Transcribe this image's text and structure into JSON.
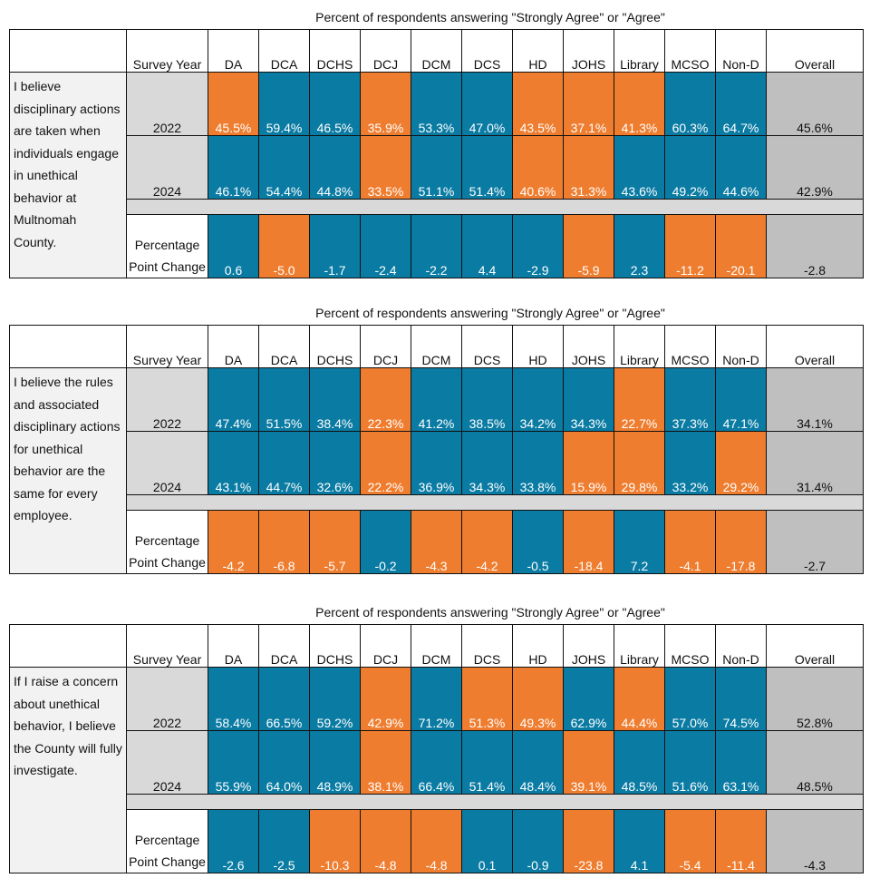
{
  "caption": "Percent of respondents answering \"Strongly Agree\" or \"Agree\"",
  "header": {
    "survey_year": "Survey Year",
    "columns": [
      "DA",
      "DCA",
      "DCHS",
      "DCJ",
      "DCM",
      "DCS",
      "HD",
      "JOHS",
      "Library",
      "MCSO",
      "Non-D"
    ],
    "overall": "Overall"
  },
  "change_label": "Percentage Point Change",
  "colors": {
    "blue": "#0a7ba3",
    "orange": "#ef7d2f",
    "gray": "#bfbfbf",
    "light_gray": "#d9d9d9"
  },
  "chart_data": [
    {
      "type": "table",
      "title": "Percent of respondents answering \"Strongly Agree\" or \"Agree\"",
      "question": "I believe disciplinary actions are taken when individuals engage in unethical behavior at Multnomah County.",
      "categories": [
        "DA",
        "DCA",
        "DCHS",
        "DCJ",
        "DCM",
        "DCS",
        "HD",
        "JOHS",
        "Library",
        "MCSO",
        "Non-D"
      ],
      "rows": [
        {
          "year": "2022",
          "values": [
            "45.5%",
            "59.4%",
            "46.5%",
            "35.9%",
            "53.3%",
            "47.0%",
            "43.5%",
            "37.1%",
            "41.3%",
            "60.3%",
            "64.7%"
          ],
          "colors": [
            "orange",
            "blue",
            "blue",
            "orange",
            "blue",
            "blue",
            "orange",
            "orange",
            "orange",
            "blue",
            "blue"
          ],
          "overall": "45.6%"
        },
        {
          "year": "2024",
          "values": [
            "46.1%",
            "54.4%",
            "44.8%",
            "33.5%",
            "51.1%",
            "51.4%",
            "40.6%",
            "31.3%",
            "43.6%",
            "49.2%",
            "44.6%"
          ],
          "colors": [
            "blue",
            "blue",
            "blue",
            "orange",
            "blue",
            "blue",
            "orange",
            "orange",
            "blue",
            "blue",
            "blue"
          ],
          "overall": "42.9%"
        }
      ],
      "change": {
        "values": [
          "0.6",
          "-5.0",
          "-1.7",
          "-2.4",
          "-2.2",
          "4.4",
          "-2.9",
          "-5.9",
          "2.3",
          "-11.2",
          "-20.1"
        ],
        "colors": [
          "blue",
          "orange",
          "blue",
          "blue",
          "blue",
          "blue",
          "blue",
          "orange",
          "blue",
          "orange",
          "orange"
        ],
        "overall": "-2.8"
      }
    },
    {
      "type": "table",
      "title": "Percent of respondents answering \"Strongly Agree\" or \"Agree\"",
      "question": "I believe the rules and associated disciplinary actions for unethical behavior are the same for every employee.",
      "categories": [
        "DA",
        "DCA",
        "DCHS",
        "DCJ",
        "DCM",
        "DCS",
        "HD",
        "JOHS",
        "Library",
        "MCSO",
        "Non-D"
      ],
      "rows": [
        {
          "year": "2022",
          "values": [
            "47.4%",
            "51.5%",
            "38.4%",
            "22.3%",
            "41.2%",
            "38.5%",
            "34.2%",
            "34.3%",
            "22.7%",
            "37.3%",
            "47.1%"
          ],
          "colors": [
            "blue",
            "blue",
            "blue",
            "orange",
            "blue",
            "blue",
            "blue",
            "blue",
            "orange",
            "blue",
            "blue"
          ],
          "overall": "34.1%"
        },
        {
          "year": "2024",
          "values": [
            "43.1%",
            "44.7%",
            "32.6%",
            "22.2%",
            "36.9%",
            "34.3%",
            "33.8%",
            "15.9%",
            "29.8%",
            "33.2%",
            "29.2%"
          ],
          "colors": [
            "blue",
            "blue",
            "blue",
            "orange",
            "blue",
            "blue",
            "blue",
            "orange",
            "orange",
            "blue",
            "orange"
          ],
          "overall": "31.4%"
        }
      ],
      "change": {
        "values": [
          "-4.2",
          "-6.8",
          "-5.7",
          "-0.2",
          "-4.3",
          "-4.2",
          "-0.5",
          "-18.4",
          "7.2",
          "-4.1",
          "-17.8"
        ],
        "colors": [
          "orange",
          "orange",
          "orange",
          "blue",
          "orange",
          "orange",
          "blue",
          "orange",
          "blue",
          "orange",
          "orange"
        ],
        "overall": "-2.7"
      }
    },
    {
      "type": "table",
      "title": "Percent of respondents answering \"Strongly Agree\" or \"Agree\"",
      "question": "If I raise a concern about unethical behavior, I believe the County will fully investigate.",
      "categories": [
        "DA",
        "DCA",
        "DCHS",
        "DCJ",
        "DCM",
        "DCS",
        "HD",
        "JOHS",
        "Library",
        "MCSO",
        "Non-D"
      ],
      "rows": [
        {
          "year": "2022",
          "values": [
            "58.4%",
            "66.5%",
            "59.2%",
            "42.9%",
            "71.2%",
            "51.3%",
            "49.3%",
            "62.9%",
            "44.4%",
            "57.0%",
            "74.5%"
          ],
          "colors": [
            "blue",
            "blue",
            "blue",
            "orange",
            "blue",
            "orange",
            "orange",
            "blue",
            "orange",
            "blue",
            "blue"
          ],
          "overall": "52.8%"
        },
        {
          "year": "2024",
          "values": [
            "55.9%",
            "64.0%",
            "48.9%",
            "38.1%",
            "66.4%",
            "51.4%",
            "48.4%",
            "39.1%",
            "48.5%",
            "51.6%",
            "63.1%"
          ],
          "colors": [
            "blue",
            "blue",
            "blue",
            "orange",
            "blue",
            "blue",
            "blue",
            "orange",
            "blue",
            "blue",
            "blue"
          ],
          "overall": "48.5%"
        }
      ],
      "change": {
        "values": [
          "-2.6",
          "-2.5",
          "-10.3",
          "-4.8",
          "-4.8",
          "0.1",
          "-0.9",
          "-23.8",
          "4.1",
          "-5.4",
          "-11.4"
        ],
        "colors": [
          "blue",
          "blue",
          "orange",
          "orange",
          "orange",
          "blue",
          "blue",
          "orange",
          "blue",
          "orange",
          "orange"
        ],
        "overall": "-4.3"
      }
    }
  ]
}
